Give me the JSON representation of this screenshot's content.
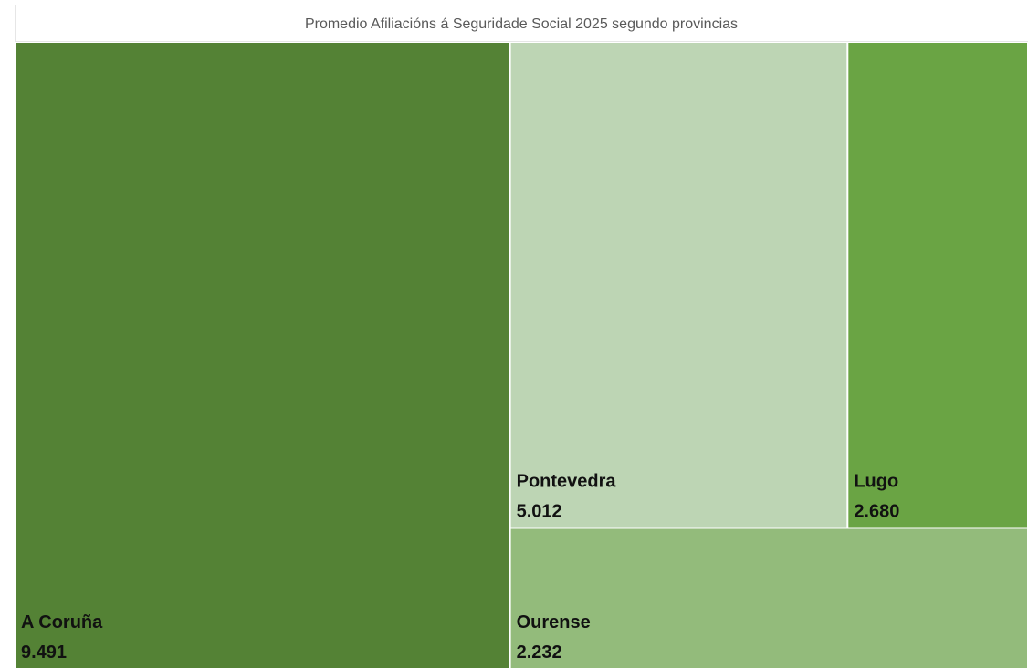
{
  "chart_data": {
    "type": "treemap",
    "title": "Promedio Afiliacións á Seguridade Social 2025 segundo provincias",
    "categories": [
      "A Coruña",
      "Pontevedra",
      "Lugo",
      "Ourense"
    ],
    "values": [
      9491,
      5012,
      2680,
      2232
    ],
    "value_labels": [
      "9.491",
      "5.012",
      "2.680",
      "2.232"
    ],
    "colors": [
      "#548235",
      "#bdd5b4",
      "#6aa444",
      "#93bb7b"
    ]
  }
}
